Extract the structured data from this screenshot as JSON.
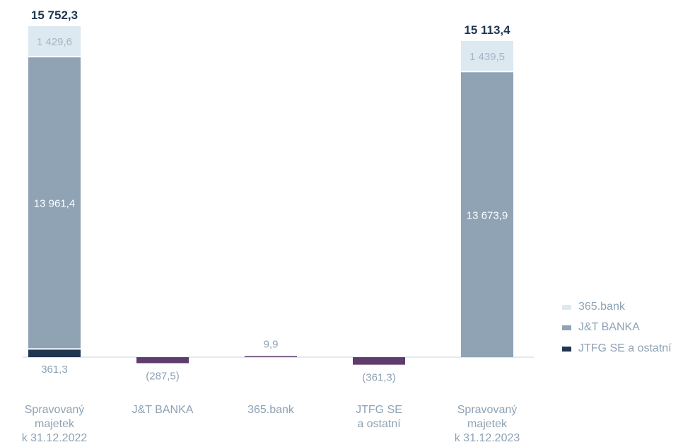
{
  "chart_data": {
    "type": "bar",
    "subtype": "waterfall",
    "categories": [
      [
        "Spravovaný",
        "majetek",
        "k 31.12.2022"
      ],
      [
        "J&T BANKA"
      ],
      [
        "365.bank"
      ],
      [
        "JTFG SE",
        "a ostatní"
      ],
      [
        "Spravovaný",
        "majetek",
        "k 31.12.2023"
      ]
    ],
    "series": [
      {
        "name": "365.bank",
        "color": "#dde9f1",
        "values": [
          1429.6,
          null,
          9.9,
          null,
          1439.5
        ]
      },
      {
        "name": "J&T BANKA",
        "color": "#8fa3b5",
        "values": [
          13961.4,
          -287.5,
          null,
          null,
          13673.9
        ]
      },
      {
        "name": "JTFG SE a ostatní",
        "color": "#1f3651",
        "values": [
          361.3,
          null,
          null,
          -361.3,
          0
        ]
      }
    ],
    "totals": [
      15752.3,
      null,
      null,
      null,
      15113.4
    ],
    "data_labels": {
      "totals": [
        "15 752,3",
        "",
        "",
        "",
        "15 113,4"
      ],
      "bank365": [
        "1 429,6",
        "",
        "9,9",
        "",
        "1 439,5"
      ],
      "jt": [
        "13 961,4",
        "",
        "",
        "",
        "13 673,9"
      ],
      "jtfg": [
        "361,3",
        "",
        "",
        "",
        ""
      ],
      "changes": [
        "",
        "(287,5)",
        "",
        "(361,3)",
        ""
      ]
    },
    "change_color": "#5e3d6e",
    "total_label_color": "#1f3651",
    "category_label_color": "#8ea2b4",
    "ylim": [
      0,
      16500
    ],
    "grid": false,
    "legend_position": "right",
    "legend": [
      {
        "label": "365.bank",
        "color": "#dde9f1"
      },
      {
        "label": "J&T BANKA",
        "color": "#8fa3b5"
      },
      {
        "label": "JTFG SE a ostatní",
        "color": "#1f3651"
      }
    ]
  }
}
